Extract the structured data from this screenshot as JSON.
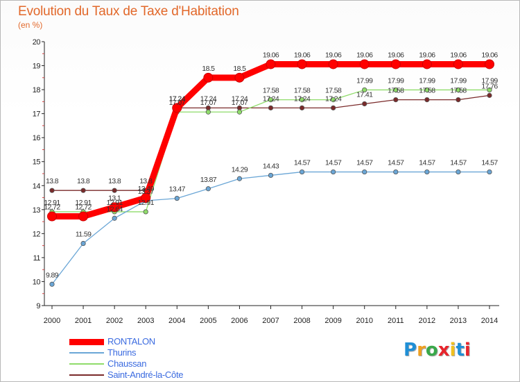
{
  "header": {
    "title": "Evolution du Taux de Taxe d'Habitation",
    "unit": "(en %)"
  },
  "branding": {
    "logo_text": "Proxiti",
    "letter_colors": [
      "#1f8fd6",
      "#f0a020",
      "#3aa84a",
      "#e8242c",
      "#f0c020",
      "#1f8fd6",
      "#e8242c"
    ]
  },
  "chart_data": {
    "type": "line",
    "x": [
      2000,
      2001,
      2002,
      2003,
      2004,
      2005,
      2006,
      2007,
      2008,
      2009,
      2010,
      2011,
      2012,
      2013,
      2014
    ],
    "ylim": [
      9,
      20
    ],
    "yticks": [
      9,
      10,
      11,
      12,
      13,
      14,
      15,
      16,
      17,
      18,
      19,
      20
    ],
    "grid": false,
    "legend_position": "bottom-left",
    "series": [
      {
        "name": "Saint-André-la-Côte",
        "color": "#7a2a2a",
        "width": 1.3,
        "values": [
          13.8,
          13.8,
          13.8,
          13.8,
          17.24,
          17.24,
          17.24,
          17.24,
          17.24,
          17.24,
          17.41,
          17.58,
          17.58,
          17.58,
          17.76
        ],
        "labels": [
          "13.8",
          "13.8",
          "13.8",
          "13.8",
          "17.24",
          "17.24",
          "17.24",
          "17.24",
          "17.24",
          "17.24",
          "17.41",
          "17.58",
          "17.58",
          "17.58",
          "17.76"
        ]
      },
      {
        "name": "Chaussan",
        "color": "#8fdc6a",
        "width": 1.3,
        "values": [
          12.91,
          12.91,
          12.91,
          12.91,
          17.07,
          17.07,
          17.07,
          17.58,
          17.58,
          17.58,
          17.99,
          17.99,
          17.99,
          17.99,
          17.99
        ],
        "labels": [
          "12.91",
          "12.91",
          "12.91",
          "12.91",
          "17.07",
          "17.07",
          "17.07",
          "17.58",
          "17.58",
          "17.58",
          "17.99",
          "17.99",
          "17.99",
          "17.99",
          "17.99"
        ]
      },
      {
        "name": "Thurins",
        "color": "#6aa6d6",
        "width": 1.3,
        "values": [
          9.89,
          11.59,
          12.64,
          13.37,
          13.47,
          13.87,
          14.29,
          14.43,
          14.57,
          14.57,
          14.57,
          14.57,
          14.57,
          14.57,
          14.57
        ],
        "labels": [
          "9.89",
          "11.59",
          "12.64",
          "13.37",
          "13.47",
          "13.87",
          "14.29",
          "14.43",
          "14.57",
          "14.57",
          "14.57",
          "14.57",
          "14.57",
          "14.57",
          "14.57"
        ]
      },
      {
        "name": "RONTALON",
        "color": "#ff0000",
        "width": 9,
        "values": [
          12.72,
          12.72,
          13.1,
          13.49,
          17.24,
          18.5,
          18.5,
          19.06,
          19.06,
          19.06,
          19.06,
          19.06,
          19.06,
          19.06,
          19.06
        ],
        "labels": [
          "12.72",
          "12.72",
          "13.1",
          "13.49",
          "17.24",
          "18.5",
          "18.5",
          "19.06",
          "19.06",
          "19.06",
          "19.06",
          "19.06",
          "19.06",
          "19.06",
          "19.06"
        ]
      }
    ],
    "legend_order": [
      "RONTALON",
      "Thurins",
      "Chaussan",
      "Saint-André-la-Côte"
    ]
  }
}
